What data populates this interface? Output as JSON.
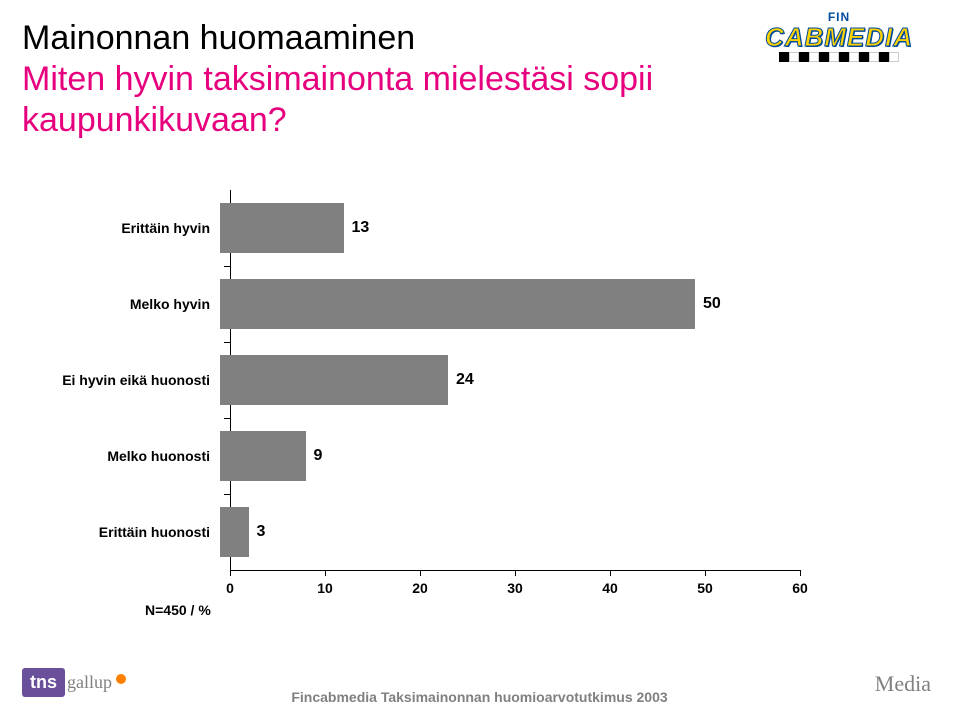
{
  "logo": {
    "fin": "FIN",
    "brand": "CABMEDIA"
  },
  "title": {
    "line1": "Mainonnan huomaaminen",
    "line2": "Miten hyvin taksimainonta mielestäsi sopii",
    "line3": "kaupunkikuvaan?",
    "color_line1": "#000000",
    "color_rest": "#e6007e",
    "fontsize": 34
  },
  "chart": {
    "type": "bar-horizontal",
    "categories": [
      "Erittäin hyvin",
      "Melko hyvin",
      "Ei hyvin eikä huonosti",
      "Melko huonosti",
      "Erittäin huonosti"
    ],
    "values": [
      13,
      50,
      24,
      9,
      3
    ],
    "bar_color": "#808080",
    "background_color": "#ffffff",
    "xlim": [
      0,
      60
    ],
    "xtick_step": 10,
    "xticks": [
      0,
      10,
      20,
      30,
      40,
      50,
      60
    ],
    "label_fontsize": 14,
    "value_fontsize": 16,
    "note": "N=450 / %"
  },
  "footer": {
    "tns": "tns",
    "gallup": "gallup",
    "center": "Fincabmedia Taksimainonnan huomioarvotutkimus 2003",
    "right": "Media",
    "tns_bg": "#6a4f9b",
    "footer_color": "#808080"
  }
}
